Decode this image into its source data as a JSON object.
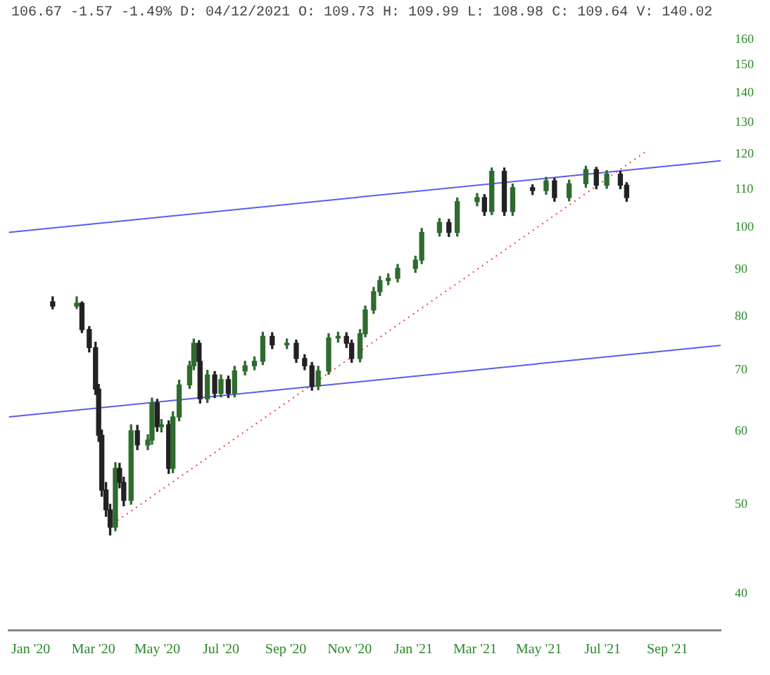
{
  "chart_data": {
    "type": "candlestick",
    "subtitle": "106.67 -1.57 -1.49% D: 04/12/2021 O: 109.73 H: 109.99 L: 108.98 C: 109.64 V: 140.02",
    "x": [
      "2020-01-22",
      "2020-02-14",
      "2020-02-19",
      "2020-02-26",
      "2020-03-03",
      "2020-03-06",
      "2020-03-09",
      "2020-03-13",
      "2020-03-17",
      "2020-03-22",
      "2020-03-26",
      "2020-03-30",
      "2020-04-06",
      "2020-04-12",
      "2020-04-22",
      "2020-04-26",
      "2020-05-01",
      "2020-05-05",
      "2020-05-12",
      "2020-05-16",
      "2020-05-22",
      "2020-06-01",
      "2020-06-05",
      "2020-06-10",
      "2020-06-11",
      "2020-06-18",
      "2020-06-25",
      "2020-07-01",
      "2020-07-08",
      "2020-07-14",
      "2020-07-24",
      "2020-08-02",
      "2020-08-10",
      "2020-08-19",
      "2020-09-02",
      "2020-09-11",
      "2020-09-19",
      "2020-09-26",
      "2020-10-02",
      "2020-10-12",
      "2020-10-21",
      "2020-10-29",
      "2020-11-03",
      "2020-11-11",
      "2020-11-16",
      "2020-11-24",
      "2020-11-30",
      "2020-12-08",
      "2020-12-17",
      "2021-01-03",
      "2021-01-09",
      "2021-01-26",
      "2021-02-04",
      "2021-02-12",
      "2021-03-03",
      "2021-03-10",
      "2021-03-17",
      "2021-03-29",
      "2021-04-06",
      "2021-04-25",
      "2021-05-08",
      "2021-05-16",
      "2021-05-30",
      "2021-06-15",
      "2021-06-25",
      "2021-07-05",
      "2021-07-18",
      "2021-07-24"
    ],
    "ohlc": [
      [
        83.0,
        84.0,
        81.5,
        82.1
      ],
      [
        82.1,
        84.0,
        81.6,
        82.7
      ],
      [
        82.7,
        83.0,
        76.8,
        77.4
      ],
      [
        77.4,
        78.0,
        73.2,
        74.0
      ],
      [
        74.0,
        75.0,
        65.8,
        66.7
      ],
      [
        66.7,
        67.5,
        58.5,
        59.4
      ],
      [
        59.4,
        60.2,
        51.0,
        51.8
      ],
      [
        51.8,
        52.8,
        48.5,
        49.3
      ],
      [
        49.3,
        50.0,
        46.3,
        47.2
      ],
      [
        47.2,
        55.5,
        46.8,
        54.7
      ],
      [
        54.7,
        55.4,
        52.1,
        52.8
      ],
      [
        52.8,
        53.5,
        49.8,
        50.5
      ],
      [
        50.5,
        61.0,
        50.0,
        60.1
      ],
      [
        60.1,
        60.9,
        57.3,
        58.0
      ],
      [
        58.0,
        59.5,
        57.3,
        58.7
      ],
      [
        58.7,
        65.2,
        58.1,
        64.4
      ],
      [
        64.4,
        65.0,
        60.0,
        60.7
      ],
      [
        60.7,
        61.8,
        59.9,
        61.0
      ],
      [
        61.0,
        61.6,
        54.0,
        54.7
      ],
      [
        54.7,
        63.0,
        54.1,
        62.2
      ],
      [
        62.2,
        68.2,
        61.6,
        67.4
      ],
      [
        67.4,
        71.5,
        66.8,
        70.7
      ],
      [
        70.7,
        75.6,
        70.0,
        74.8
      ],
      [
        74.8,
        75.3,
        70.8,
        71.5
      ],
      [
        71.5,
        72.0,
        64.4,
        65.1
      ],
      [
        65.1,
        69.9,
        64.5,
        69.1
      ],
      [
        69.1,
        69.7,
        65.3,
        66.0
      ],
      [
        66.0,
        69.1,
        65.4,
        68.3
      ],
      [
        68.3,
        68.9,
        65.3,
        66.0
      ],
      [
        66.0,
        70.6,
        65.4,
        69.8
      ],
      [
        69.8,
        71.5,
        69.1,
        70.7
      ],
      [
        70.7,
        72.3,
        70.0,
        71.5
      ],
      [
        71.5,
        76.9,
        70.9,
        76.1
      ],
      [
        76.1,
        76.8,
        73.8,
        74.5
      ],
      [
        74.5,
        75.6,
        73.8,
        74.8
      ],
      [
        74.8,
        75.4,
        71.3,
        72.0
      ],
      [
        72.0,
        72.7,
        70.0,
        70.7
      ],
      [
        70.7,
        71.3,
        66.5,
        67.2
      ],
      [
        67.2,
        70.6,
        66.6,
        69.8
      ],
      [
        69.8,
        76.6,
        69.2,
        75.8
      ],
      [
        75.8,
        76.9,
        75.0,
        76.1
      ],
      [
        76.1,
        76.8,
        74.0,
        74.8
      ],
      [
        74.8,
        75.4,
        71.3,
        72.0
      ],
      [
        72.0,
        77.4,
        71.4,
        76.6
      ],
      [
        76.6,
        82.1,
        76.0,
        81.3
      ],
      [
        81.3,
        86.0,
        80.6,
        85.1
      ],
      [
        85.1,
        88.4,
        84.3,
        87.5
      ],
      [
        87.5,
        89.0,
        86.6,
        88.0
      ],
      [
        88.0,
        91.1,
        87.2,
        90.2
      ],
      [
        90.2,
        93.0,
        89.3,
        92.1
      ],
      [
        92.1,
        99.7,
        91.3,
        98.7
      ],
      [
        98.7,
        102.2,
        97.8,
        101.2
      ],
      [
        101.2,
        102.0,
        97.7,
        98.7
      ],
      [
        98.7,
        107.6,
        97.8,
        106.6
      ],
      [
        106.6,
        108.8,
        105.5,
        107.7
      ],
      [
        107.7,
        108.5,
        103.0,
        104.0
      ],
      [
        104.0,
        116.0,
        103.2,
        115.0
      ],
      [
        115.0,
        116.0,
        103.0,
        104.0
      ],
      [
        104.0,
        111.4,
        103.0,
        110.4
      ],
      [
        110.4,
        111.2,
        108.5,
        109.6
      ],
      [
        109.6,
        113.3,
        108.6,
        112.3
      ],
      [
        112.3,
        113.0,
        106.7,
        107.7
      ],
      [
        107.7,
        112.5,
        106.8,
        111.5
      ],
      [
        111.5,
        116.5,
        110.5,
        115.5
      ],
      [
        115.5,
        116.2,
        110.1,
        111.1
      ],
      [
        111.1,
        115.2,
        110.2,
        114.2
      ],
      [
        114.2,
        115.0,
        110.1,
        111.1
      ],
      [
        111.1,
        111.8,
        106.7,
        107.7
      ]
    ],
    "series": [
      {
        "type": "line",
        "color": "#5b5bef",
        "line_style": "solid",
        "x": [
          "2019-12-11",
          "2021-10-22"
        ],
        "values": [
          98.7,
          118.1
        ]
      },
      {
        "type": "line",
        "color": "#5b5bef",
        "line_style": "solid",
        "x": [
          "2019-12-11",
          "2021-10-22"
        ],
        "values": [
          62.2,
          74.4
        ]
      },
      {
        "type": "line",
        "color": "#ee4444",
        "line_style": "dotted",
        "x": [
          "2020-03-24",
          "2021-08-13"
        ],
        "values": [
          48.0,
          121.2
        ]
      }
    ],
    "log": "y",
    "grid": false,
    "legend": false,
    "xlim": [
      "2019-12-11",
      "2021-10-22"
    ],
    "xticks": [
      {
        "value": "2020-01-01",
        "label": "Jan '20"
      },
      {
        "value": "2020-03-01",
        "label": "Mar '20"
      },
      {
        "value": "2020-05-01",
        "label": "May '20"
      },
      {
        "value": "2020-07-01",
        "label": "Jul '20"
      },
      {
        "value": "2020-09-01",
        "label": "Sep '20"
      },
      {
        "value": "2020-11-01",
        "label": "Nov '20"
      },
      {
        "value": "2021-01-01",
        "label": "Jan '21"
      },
      {
        "value": "2021-03-01",
        "label": "Mar '21"
      },
      {
        "value": "2021-05-01",
        "label": "May '21"
      },
      {
        "value": "2021-07-01",
        "label": "Jul '21"
      },
      {
        "value": "2021-09-01",
        "label": "Sep '21"
      }
    ],
    "ylim": [
      36.5,
      160
    ],
    "yticks": [
      40,
      50,
      60,
      70,
      80,
      90,
      100,
      110,
      120,
      130,
      140,
      150,
      160
    ]
  }
}
